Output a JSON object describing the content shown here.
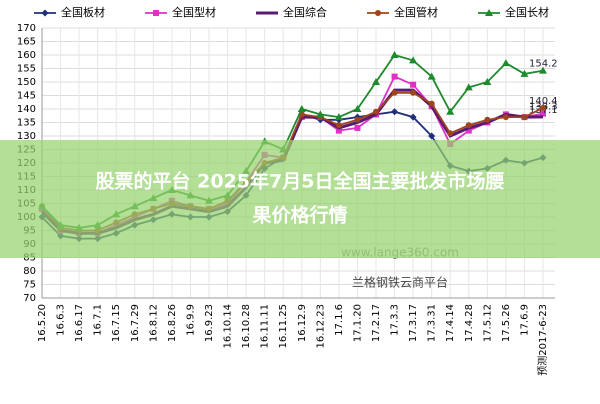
{
  "chart_data": {
    "type": "line",
    "categories": [
      "16.5.20",
      "16.6.3",
      "16.6.17",
      "16.7.1",
      "16.7.15",
      "16.7.29",
      "16.8.12",
      "16.8.26",
      "16.9.9",
      "16.9.23",
      "16.10.14",
      "16.10.28",
      "16.11.11",
      "16.11.25",
      "16.12.9",
      "16.12.23",
      "17.1.6",
      "17.1.20",
      "17.2.17",
      "17.3.3",
      "17.3.17",
      "17.3.31",
      "17.4.14",
      "17.4.28",
      "17.5.12",
      "17.5.26",
      "17.6.9",
      "预测2017-6-23"
    ],
    "series": [
      {
        "name": "全国板材",
        "color": "#1f2f7a",
        "marker": "diamond",
        "values": [
          100,
          93,
          92,
          92,
          94,
          97,
          99,
          101,
          100,
          100,
          102,
          108,
          118,
          122,
          138,
          136,
          136,
          137,
          138,
          139,
          137,
          130,
          119,
          117,
          118,
          121,
          120,
          122
        ]
      },
      {
        "name": "全国型材",
        "color": "#e030c8",
        "marker": "square",
        "values": [
          103,
          95,
          94,
          94,
          97,
          100,
          103,
          106,
          104,
          103,
          105,
          113,
          123,
          122,
          137,
          137,
          132,
          133,
          138,
          152,
          149,
          141,
          127,
          132,
          135,
          138,
          137,
          138.3
        ],
        "value_labels": [
          null,
          null,
          null,
          null,
          null,
          null,
          null,
          null,
          null,
          null,
          null,
          null,
          null,
          null,
          null,
          null,
          null,
          null,
          null,
          null,
          null,
          null,
          null,
          null,
          null,
          null,
          null,
          "138.3"
        ]
      },
      {
        "name": "全国综合",
        "color": "#5a1a70",
        "marker": "none",
        "values": [
          102,
          95,
          94,
          94,
          96,
          99,
          101,
          104,
          103,
          102,
          104,
          111,
          120,
          121,
          137,
          137,
          133,
          135,
          138,
          147,
          147,
          141,
          130,
          133,
          135,
          138,
          137,
          137.1
        ],
        "value_labels": [
          null,
          null,
          null,
          null,
          null,
          null,
          null,
          null,
          null,
          null,
          null,
          null,
          null,
          null,
          null,
          null,
          null,
          null,
          null,
          null,
          null,
          null,
          null,
          null,
          null,
          null,
          null,
          "137.1"
        ]
      },
      {
        "name": "全国管材",
        "color": "#a0441c",
        "marker": "circle",
        "values": [
          104,
          96,
          95,
          95,
          98,
          101,
          103,
          105,
          104,
          103,
          106,
          113,
          120,
          122,
          138,
          137,
          134,
          136,
          139,
          146,
          146,
          142,
          131,
          134,
          136,
          137,
          137,
          140.4
        ],
        "value_labels": [
          null,
          null,
          null,
          null,
          null,
          null,
          null,
          null,
          null,
          null,
          null,
          null,
          null,
          null,
          null,
          null,
          null,
          null,
          null,
          null,
          null,
          null,
          null,
          null,
          null,
          null,
          null,
          "140.4"
        ]
      },
      {
        "name": "全国长材",
        "color": "#1e8a2e",
        "marker": "triangle",
        "values": [
          104,
          97,
          96,
          97,
          101,
          104,
          107,
          110,
          108,
          106,
          108,
          117,
          128,
          125,
          140,
          138,
          137,
          140,
          150,
          160,
          158,
          152,
          139,
          148,
          150,
          157,
          153,
          154.2
        ],
        "value_labels": [
          null,
          null,
          null,
          null,
          null,
          null,
          null,
          null,
          null,
          null,
          null,
          null,
          null,
          null,
          null,
          null,
          null,
          null,
          null,
          null,
          null,
          null,
          null,
          null,
          null,
          null,
          null,
          "154.2"
        ]
      }
    ],
    "ylim": [
      70,
      170
    ],
    "yticks": [
      70,
      75,
      80,
      85,
      90,
      95,
      100,
      105,
      110,
      115,
      120,
      125,
      130,
      135,
      140,
      145,
      150,
      155,
      160,
      165,
      170
    ],
    "grid": true,
    "watermark": [
      "www.lange360.com",
      "兰格钢铁云商平台"
    ]
  },
  "overlay": {
    "lines": [
      "股票的平台 2025年7月5日全国主要批发市场腰",
      "果价格行情"
    ]
  }
}
